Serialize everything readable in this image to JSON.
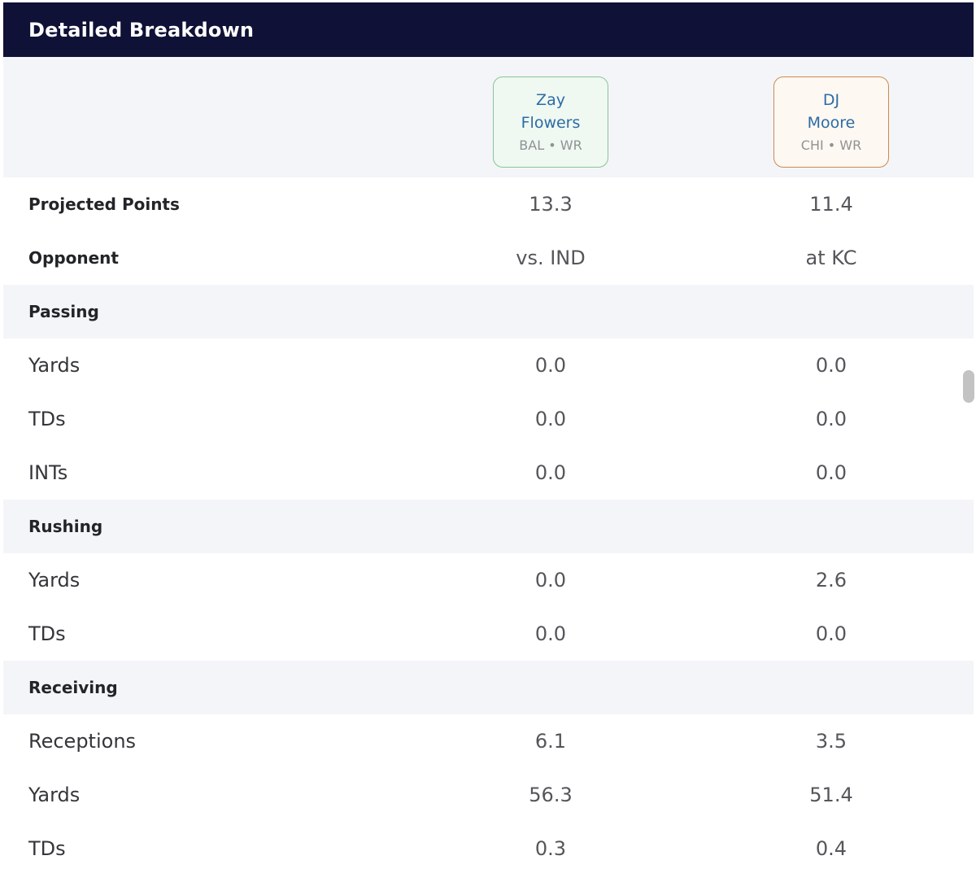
{
  "header": {
    "title": "Detailed Breakdown"
  },
  "players": [
    {
      "name": "Zay Flowers",
      "team": "BAL • WR",
      "accent": "green",
      "border_color": "#89c498",
      "bg_color": "#eff8f1"
    },
    {
      "name": "DJ Moore",
      "team": "CHI • WR",
      "accent": "orange",
      "border_color": "#cd8a52",
      "bg_color": "#fdf8f1"
    }
  ],
  "colors": {
    "title_bar_bg": "#0f1137",
    "title_text": "#ffffff",
    "section_bg": "#f4f5f8",
    "player_name_blue": "#2d6ba4",
    "value_gray": "#55565a"
  },
  "table": {
    "rows": [
      {
        "type": "stat",
        "emphasis": "bold",
        "label": "Projected Points",
        "values": [
          "13.3",
          "11.4"
        ]
      },
      {
        "type": "stat",
        "emphasis": "bold",
        "label": "Opponent",
        "values": [
          "vs. IND",
          "at KC"
        ]
      },
      {
        "type": "section",
        "label": "Passing"
      },
      {
        "type": "stat",
        "label": "Yards",
        "values": [
          "0.0",
          "0.0"
        ]
      },
      {
        "type": "stat",
        "label": "TDs",
        "values": [
          "0.0",
          "0.0"
        ]
      },
      {
        "type": "stat",
        "label": "INTs",
        "values": [
          "0.0",
          "0.0"
        ]
      },
      {
        "type": "section",
        "label": "Rushing"
      },
      {
        "type": "stat",
        "label": "Yards",
        "values": [
          "0.0",
          "2.6"
        ]
      },
      {
        "type": "stat",
        "label": "TDs",
        "values": [
          "0.0",
          "0.0"
        ]
      },
      {
        "type": "section",
        "label": "Receiving"
      },
      {
        "type": "stat",
        "label": "Receptions",
        "values": [
          "6.1",
          "3.5"
        ]
      },
      {
        "type": "stat",
        "label": "Yards",
        "values": [
          "56.3",
          "51.4"
        ]
      },
      {
        "type": "stat",
        "label": "TDs",
        "values": [
          "0.3",
          "0.4"
        ]
      }
    ]
  }
}
